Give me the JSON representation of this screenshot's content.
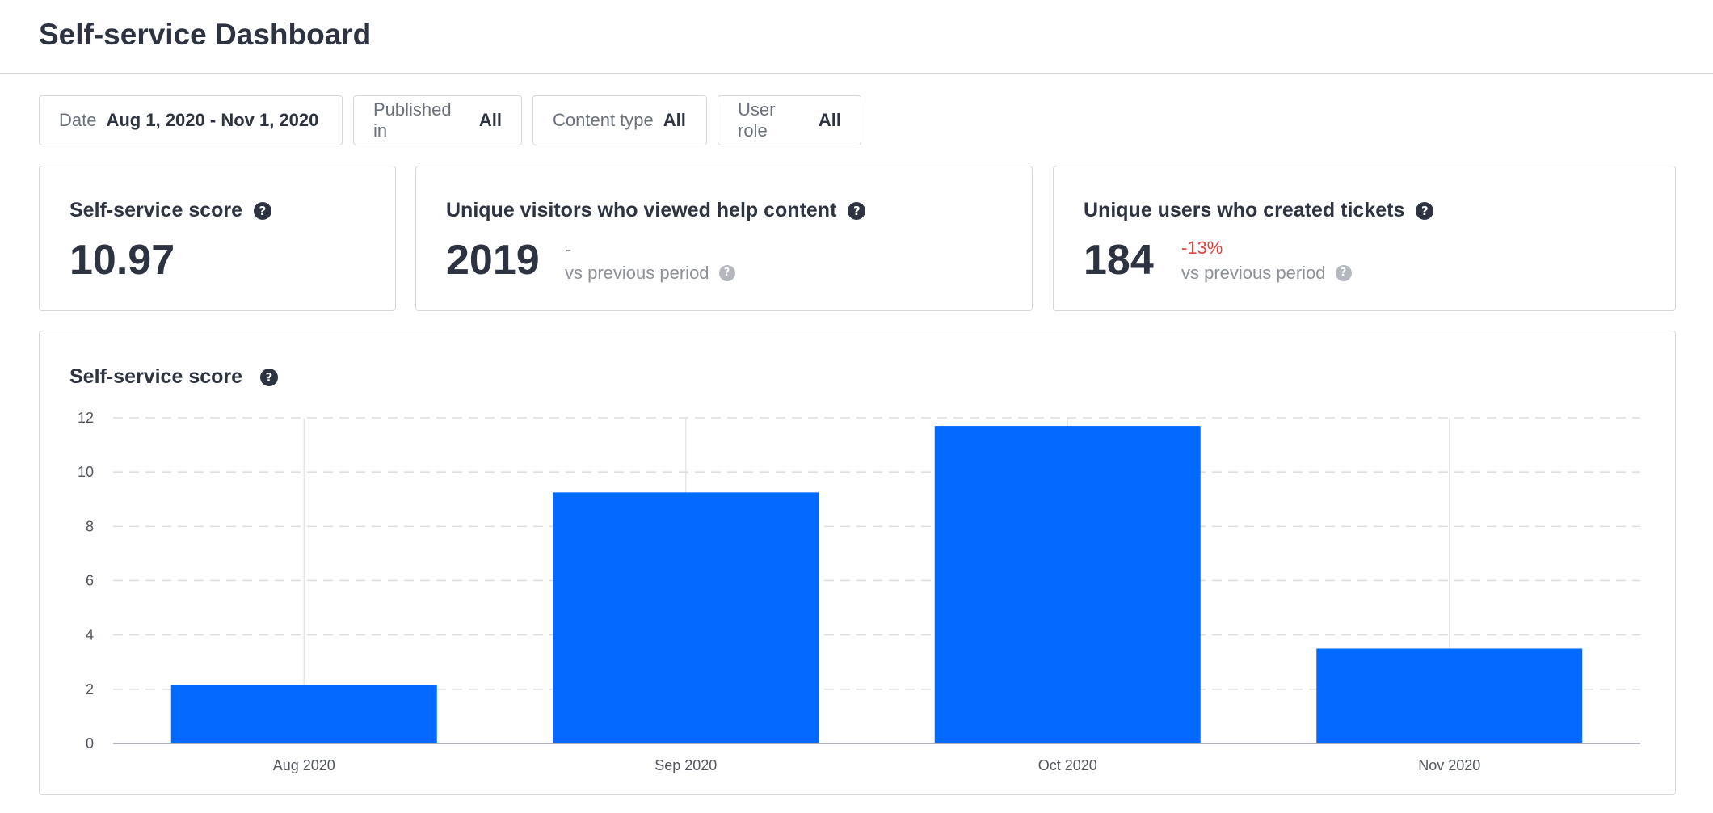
{
  "header": {
    "title": "Self-service Dashboard"
  },
  "filters": [
    {
      "label": "Date",
      "value": "Aug 1, 2020 - Nov 1, 2020"
    },
    {
      "label": "Published in",
      "value": "All"
    },
    {
      "label": "Content type",
      "value": "All"
    },
    {
      "label": "User role",
      "value": "All"
    }
  ],
  "cards": [
    {
      "title": "Self-service score",
      "value": "10.97"
    },
    {
      "title": "Unique visitors who viewed help content",
      "value": "2019",
      "delta": "-",
      "comparison": "vs previous period"
    },
    {
      "title": "Unique users who created tickets",
      "value": "184",
      "delta": "-13%",
      "comparison": "vs previous period"
    }
  ],
  "colors": {
    "bar": "#0369ff",
    "negative": "#e2403d",
    "text": "#2d3340"
  },
  "icons": {
    "help": "question-circle-icon"
  },
  "chart_data": {
    "type": "bar",
    "title": "Self-service score",
    "categories": [
      "Aug 2020",
      "Sep 2020",
      "Oct 2020",
      "Nov 2020"
    ],
    "values": [
      2.15,
      9.25,
      11.7,
      3.5
    ],
    "ylim": [
      0,
      12
    ],
    "yticks": [
      0,
      2,
      4,
      6,
      8,
      10,
      12
    ],
    "xlabel": "",
    "ylabel": "",
    "grid": true,
    "legend": "none"
  }
}
